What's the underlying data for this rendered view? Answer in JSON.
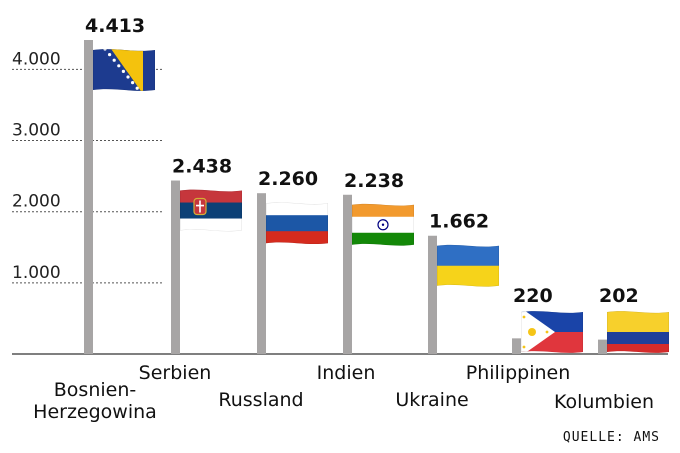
{
  "chart_data": {
    "type": "bar",
    "title": "",
    "xlabel": "",
    "ylabel": "",
    "ylim": [
      0,
      4413
    ],
    "y_ticks": [
      "1.000",
      "2.000",
      "3.000",
      "4.000"
    ],
    "grid": "dotted horizontal lines",
    "categories": [
      "Bosnien-Herzegowina",
      "Serbien",
      "Russland",
      "Indien",
      "Ukraine",
      "Philippinen",
      "Kolumbien"
    ],
    "category_lines": [
      [
        "Bosnien-",
        "Herzegowina"
      ],
      [
        "Serbien"
      ],
      [
        "Russland"
      ],
      [
        "Indien"
      ],
      [
        "Ukraine"
      ],
      [
        "Philippinen"
      ],
      [
        "Kolumbien"
      ]
    ],
    "values": [
      4413,
      2438,
      2260,
      2238,
      1662,
      220,
      202
    ],
    "value_labels": [
      "4.413",
      "2.438",
      "2.260",
      "2.238",
      "1.662",
      "220",
      "202"
    ],
    "flags": [
      "bosnia-herzegovina-flag",
      "serbia-flag",
      "russia-flag",
      "india-flag",
      "ukraine-flag",
      "philippines-flag",
      "colombia-flag"
    ],
    "pole_color": "#a7a5a5"
  },
  "source": "QUELLE: AMS"
}
